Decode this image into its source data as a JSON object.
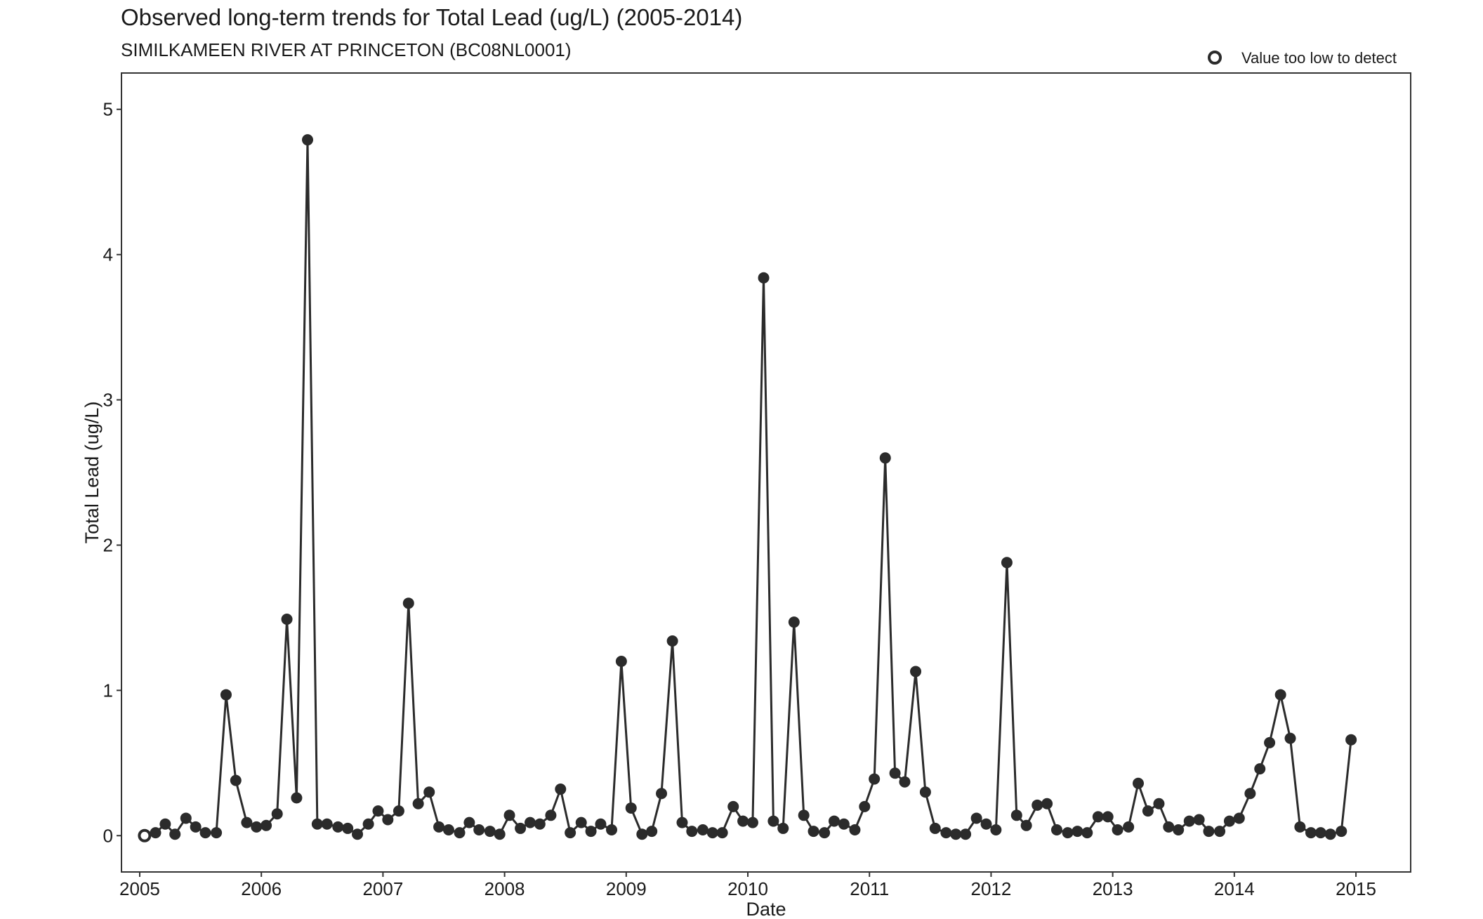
{
  "chart_data": {
    "type": "line",
    "title": "Observed long-term trends for Total Lead (ug/L) (2005-2014)",
    "subtitle": "SIMILKAMEEN RIVER AT PRINCETON (BC08NL0001)",
    "xlabel": "Date",
    "ylabel": "Total Lead (ug/L)",
    "xlim": [
      2004.85,
      2015.45
    ],
    "ylim": [
      -0.25,
      5.25
    ],
    "x_ticks": [
      2005,
      2006,
      2007,
      2008,
      2009,
      2010,
      2011,
      2012,
      2013,
      2014,
      2015
    ],
    "x_tick_labels": [
      "2005",
      "2006",
      "2007",
      "2008",
      "2009",
      "2010",
      "2011",
      "2012",
      "2013",
      "2014",
      "2015"
    ],
    "y_ticks": [
      0,
      1,
      2,
      3,
      4,
      5
    ],
    "y_tick_labels": [
      "0",
      "1",
      "2",
      "3",
      "4",
      "5"
    ],
    "grid": false,
    "legend": {
      "position": "top-right",
      "entries": [
        {
          "label": "Value too low to detect",
          "marker": "open-circle"
        }
      ]
    },
    "colors": {
      "series": "#2b2b2b",
      "axis": "#1a1a1a"
    },
    "series": [
      {
        "x": [
          2005.04,
          2005.13,
          2005.21,
          2005.29,
          2005.38,
          2005.46,
          2005.54,
          2005.63,
          2005.71,
          2005.79,
          2005.88,
          2005.96,
          2006.04,
          2006.13,
          2006.21,
          2006.29,
          2006.38,
          2006.46,
          2006.54,
          2006.63,
          2006.71,
          2006.79,
          2006.88,
          2006.96,
          2007.04,
          2007.13,
          2007.21,
          2007.29,
          2007.38,
          2007.46,
          2007.54,
          2007.63,
          2007.71,
          2007.79,
          2007.88,
          2007.96,
          2008.04,
          2008.13,
          2008.21,
          2008.29,
          2008.38,
          2008.46,
          2008.54,
          2008.63,
          2008.71,
          2008.79,
          2008.88,
          2008.96,
          2009.04,
          2009.13,
          2009.21,
          2009.29,
          2009.38,
          2009.46,
          2009.54,
          2009.63,
          2009.71,
          2009.79,
          2009.88,
          2009.96,
          2010.04,
          2010.13,
          2010.21,
          2010.29,
          2010.38,
          2010.46,
          2010.54,
          2010.63,
          2010.71,
          2010.79,
          2010.88,
          2010.96,
          2011.04,
          2011.13,
          2011.21,
          2011.29,
          2011.38,
          2011.46,
          2011.54,
          2011.63,
          2011.71,
          2011.79,
          2011.88,
          2011.96,
          2012.04,
          2012.13,
          2012.21,
          2012.29,
          2012.38,
          2012.46,
          2012.54,
          2012.63,
          2012.71,
          2012.79,
          2012.88,
          2012.96,
          2013.04,
          2013.13,
          2013.21,
          2013.29,
          2013.38,
          2013.46,
          2013.54,
          2013.63,
          2013.71,
          2013.79,
          2013.88,
          2013.96,
          2014.04,
          2014.13,
          2014.21,
          2014.29,
          2014.38,
          2014.46,
          2014.54,
          2014.63,
          2014.71,
          2014.79,
          2014.88,
          2014.96
        ],
        "values": [
          0.0,
          0.02,
          0.08,
          0.01,
          0.12,
          0.06,
          0.02,
          0.02,
          0.97,
          0.38,
          0.09,
          0.06,
          0.07,
          0.15,
          1.49,
          0.26,
          4.79,
          0.08,
          0.08,
          0.06,
          0.05,
          0.01,
          0.08,
          0.17,
          0.11,
          0.17,
          1.6,
          0.22,
          0.3,
          0.06,
          0.04,
          0.02,
          0.09,
          0.04,
          0.03,
          0.01,
          0.14,
          0.05,
          0.09,
          0.08,
          0.14,
          0.32,
          0.02,
          0.09,
          0.03,
          0.08,
          0.04,
          1.2,
          0.19,
          0.01,
          0.03,
          0.29,
          1.34,
          0.09,
          0.03,
          0.04,
          0.02,
          0.02,
          0.2,
          0.1,
          0.09,
          3.84,
          0.1,
          0.05,
          1.47,
          0.14,
          0.03,
          0.02,
          0.1,
          0.08,
          0.04,
          0.2,
          0.39,
          2.6,
          0.43,
          0.37,
          1.13,
          0.3,
          0.05,
          0.02,
          0.01,
          0.01,
          0.12,
          0.08,
          0.04,
          1.88,
          0.14,
          0.07,
          0.21,
          0.22,
          0.04,
          0.02,
          0.03,
          0.02,
          0.13,
          0.13,
          0.04,
          0.06,
          0.36,
          0.17,
          0.22,
          0.06,
          0.04,
          0.1,
          0.11,
          0.03,
          0.03,
          0.1,
          0.12,
          0.29,
          0.46,
          0.64,
          0.97,
          0.67,
          0.06,
          0.02,
          0.02,
          0.01,
          0.03,
          0.66
        ],
        "below_detection_flags": [
          true,
          false,
          false,
          false,
          false,
          false,
          false,
          false,
          false,
          false,
          false,
          false,
          false,
          false,
          false,
          false,
          false,
          false,
          false,
          false,
          false,
          false,
          false,
          false,
          false,
          false,
          false,
          false,
          false,
          false,
          false,
          false,
          false,
          false,
          false,
          false,
          false,
          false,
          false,
          false,
          false,
          false,
          false,
          false,
          false,
          false,
          false,
          false,
          false,
          false,
          false,
          false,
          false,
          false,
          false,
          false,
          false,
          false,
          false,
          false,
          false,
          false,
          false,
          false,
          false,
          false,
          false,
          false,
          false,
          false,
          false,
          false,
          false,
          false,
          false,
          false,
          false,
          false,
          false,
          false,
          false,
          false,
          false,
          false,
          false,
          false,
          false,
          false,
          false,
          false,
          false,
          false,
          false,
          false,
          false,
          false,
          false,
          false,
          false,
          false,
          false,
          false,
          false,
          false,
          false,
          false,
          false,
          false,
          false,
          false,
          false,
          false,
          false,
          false,
          false,
          false,
          false,
          false,
          false,
          false
        ]
      }
    ]
  }
}
